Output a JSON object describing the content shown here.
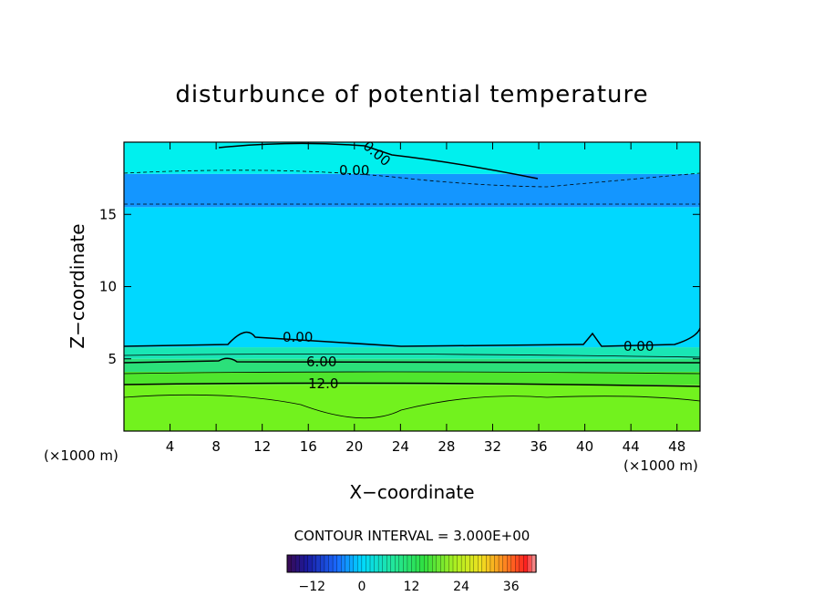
{
  "chart_data": {
    "type": "heatmap",
    "title": "disturbunce of potential temperature",
    "xlabel": "X−coordinate",
    "ylabel": "Z−coordinate",
    "x_unit_left": "(×1000 m)",
    "x_unit_right": "(×1000 m)",
    "xlim": [
      0,
      50
    ],
    "ylim": [
      0,
      20
    ],
    "x_ticks": [
      4,
      8,
      12,
      16,
      20,
      24,
      28,
      32,
      36,
      40,
      44,
      48
    ],
    "y_ticks": [
      5,
      10,
      15
    ],
    "contour_interval_text": "CONTOUR INTERVAL = 3.000E+00",
    "contour_labels": [
      "0.00",
      "0.00",
      "0.00",
      "0.00",
      "6.00",
      "12.0"
    ],
    "colorbar": {
      "range": [
        -18,
        42
      ],
      "ticks": [
        -12,
        0,
        12,
        24,
        36
      ],
      "tick_labels": [
        "−12",
        "0",
        "12",
        "24",
        "36"
      ]
    },
    "field_bands": [
      {
        "z": [
          0,
          3.2
        ],
        "value": 15,
        "color": "#72f21e"
      },
      {
        "z": [
          3.2,
          4.1
        ],
        "value": 12,
        "color": "#4fe52d"
      },
      {
        "z": [
          4.1,
          5.0
        ],
        "value": 9,
        "color": "#2be07a"
      },
      {
        "z": [
          5.0,
          5.8
        ],
        "value": 5,
        "color": "#19e6b4"
      },
      {
        "z": [
          5.8,
          15.5
        ],
        "value": 1,
        "color": "#00d8ff"
      },
      {
        "z": [
          15.5,
          17.8
        ],
        "value": -3,
        "color": "#1496ff"
      },
      {
        "z": [
          17.8,
          20
        ],
        "value": 2,
        "color": "#00f0ee"
      }
    ],
    "grid": false,
    "legend": "bottom"
  }
}
